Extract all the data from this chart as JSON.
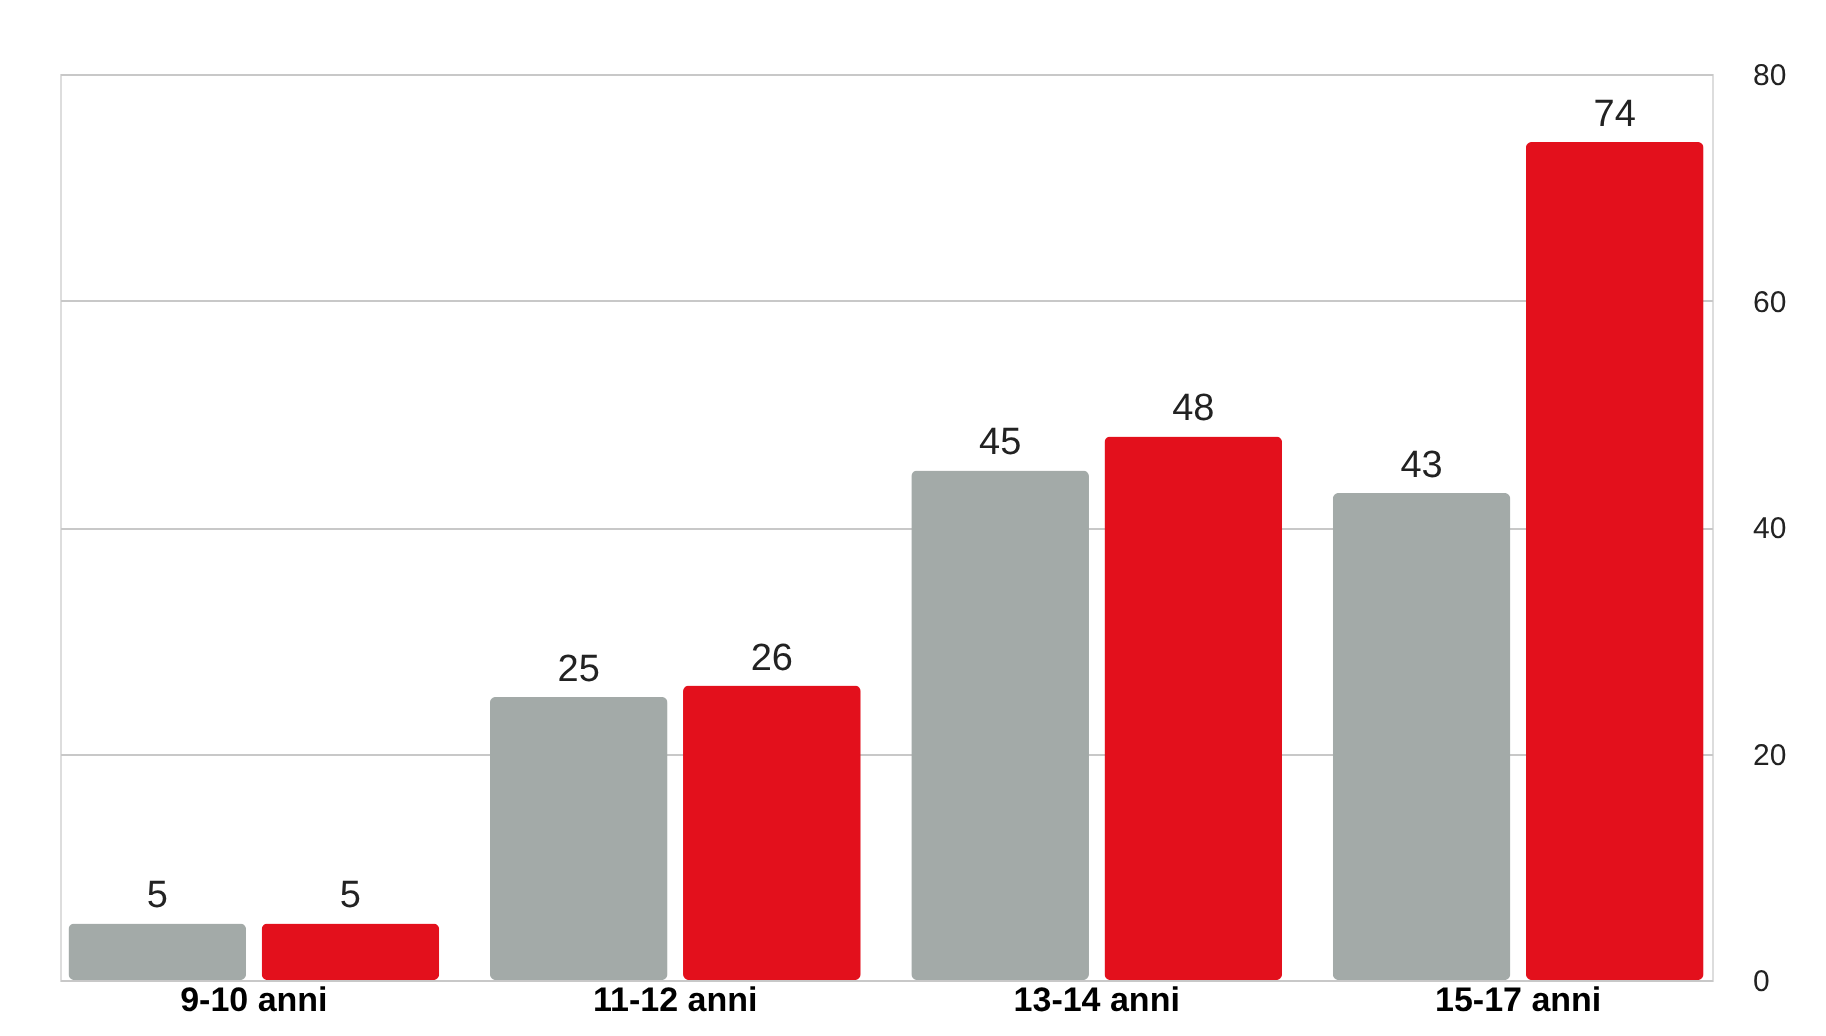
{
  "chart_data": {
    "type": "bar",
    "categories": [
      "9-10 anni",
      "11-12 anni",
      "13-14 anni",
      "15-17 anni"
    ],
    "series": [
      {
        "color": "#a3aaa8",
        "values": [
          5,
          25,
          45,
          43
        ]
      },
      {
        "color": "#e3101c",
        "values": [
          5,
          26,
          48,
          74
        ]
      }
    ],
    "ylim": [
      0,
      80
    ],
    "yticks": [
      0,
      20,
      40,
      60,
      80
    ],
    "grid": "y",
    "data_labels": true,
    "legend": false
  }
}
